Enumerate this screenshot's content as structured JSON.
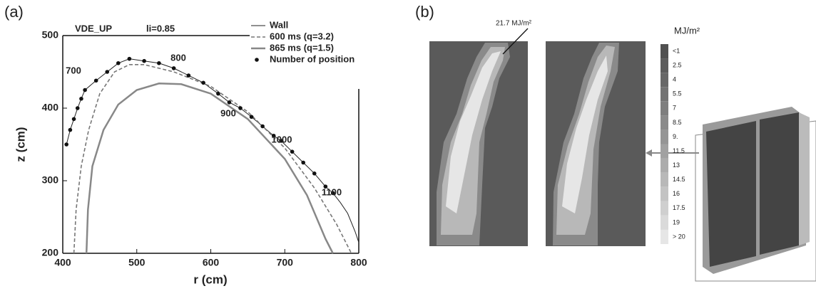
{
  "chart_data": [
    {
      "type": "line",
      "panel_label": "(a)",
      "title": "VDE_UP",
      "annotation": "li=0.85",
      "xlabel": "r (cm)",
      "ylabel": "z (cm)",
      "xlim": [
        400,
        800
      ],
      "ylim": [
        200,
        500
      ],
      "xticks": [
        400,
        500,
        600,
        700,
        800
      ],
      "yticks": [
        200,
        300,
        400,
        500
      ],
      "position_labels": [
        "700",
        "800",
        "900",
        "1000",
        "1100"
      ],
      "series": [
        {
          "name": "Wall",
          "color": "#222222",
          "style": "solid",
          "x": [
            405,
            410,
            415,
            420,
            425,
            430,
            445,
            460,
            475,
            490,
            510,
            530,
            550,
            570,
            590,
            610,
            625,
            640,
            655,
            670,
            685,
            695,
            710,
            725,
            740,
            755,
            765,
            775,
            785,
            795,
            800
          ],
          "values": [
            350,
            370,
            385,
            400,
            413,
            425,
            438,
            450,
            462,
            468,
            465,
            462,
            455,
            445,
            435,
            420,
            408,
            400,
            388,
            375,
            362,
            355,
            340,
            325,
            310,
            292,
            283,
            270,
            255,
            230,
            215
          ]
        },
        {
          "name": "600 ms (q=3.2)",
          "color": "#777777",
          "style": "dashed",
          "x": [
            415,
            418,
            425,
            435,
            450,
            470,
            490,
            510,
            550,
            600,
            650,
            700,
            740,
            770,
            790
          ],
          "values": [
            200,
            260,
            320,
            370,
            420,
            450,
            460,
            460,
            450,
            430,
            395,
            345,
            290,
            240,
            200
          ]
        },
        {
          "name": "865 ms (q=1.5)",
          "color": "#888888",
          "style": "thick",
          "x": [
            432,
            434,
            440,
            455,
            475,
            500,
            530,
            560,
            600,
            650,
            700,
            730,
            755,
            765
          ],
          "values": [
            200,
            260,
            320,
            370,
            405,
            425,
            434,
            433,
            420,
            385,
            330,
            280,
            220,
            200
          ]
        },
        {
          "name": "Number of position",
          "color": "#111111",
          "style": "dots",
          "x": [
            405,
            410,
            415,
            420,
            425,
            430,
            445,
            460,
            475,
            490,
            510,
            530,
            550,
            570,
            590,
            610,
            625,
            640,
            655,
            670,
            685,
            695,
            710,
            725,
            740,
            755,
            765
          ],
          "values": [
            350,
            370,
            385,
            400,
            413,
            425,
            438,
            450,
            462,
            468,
            465,
            462,
            455,
            445,
            435,
            420,
            408,
            400,
            388,
            375,
            362,
            355,
            340,
            325,
            310,
            292,
            283
          ]
        }
      ]
    }
  ],
  "panel_b": {
    "panel_label": "(b)",
    "annotation": "21.7 MJ/m²",
    "colorbar_title": "MJ/m²",
    "colorbar_labels": [
      "<1",
      "2.5",
      "4",
      "5.5",
      "7",
      "8.5",
      "9.",
      "11.5",
      "13",
      "14.5",
      "16",
      "17.5",
      "19",
      "> 20"
    ]
  }
}
